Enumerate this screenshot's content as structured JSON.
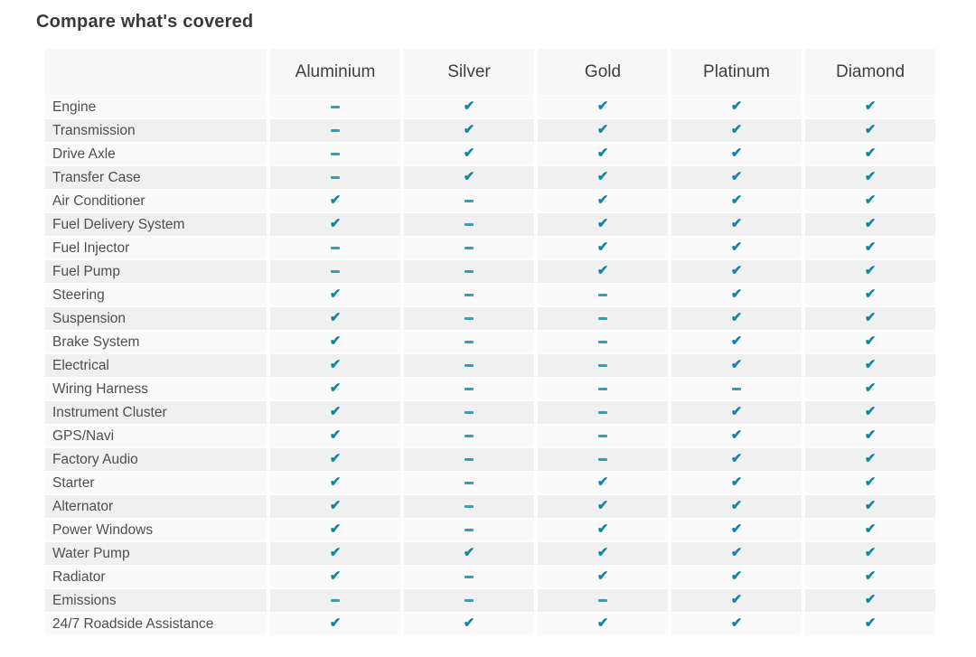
{
  "title": "Compare what's covered",
  "colors": {
    "check": "#1283a6",
    "dash": "#2aa0c6",
    "row_odd": "#fafafa",
    "row_even": "#f0f0f0",
    "header_bg": "#f7f7f7"
  },
  "table": {
    "plans": [
      "Aluminium",
      "Silver",
      "Gold",
      "Platinum",
      "Diamond"
    ],
    "rows": [
      {
        "label": "Engine",
        "coverage": [
          "dash",
          "check",
          "check",
          "check",
          "check"
        ]
      },
      {
        "label": "Transmission",
        "coverage": [
          "dash",
          "check",
          "check",
          "check",
          "check"
        ]
      },
      {
        "label": "Drive Axle",
        "coverage": [
          "dash",
          "check",
          "check",
          "check",
          "check"
        ]
      },
      {
        "label": "Transfer Case",
        "coverage": [
          "dash",
          "check",
          "check",
          "check",
          "check"
        ]
      },
      {
        "label": "Air Conditioner",
        "coverage": [
          "check",
          "dash",
          "check",
          "check",
          "check"
        ]
      },
      {
        "label": "Fuel Delivery System",
        "coverage": [
          "check",
          "dash",
          "check",
          "check",
          "check"
        ]
      },
      {
        "label": "Fuel Injector",
        "coverage": [
          "dash",
          "dash",
          "check",
          "check",
          "check"
        ]
      },
      {
        "label": "Fuel Pump",
        "coverage": [
          "dash",
          "dash",
          "check",
          "check",
          "check"
        ]
      },
      {
        "label": "Steering",
        "coverage": [
          "check",
          "dash",
          "dash",
          "check",
          "check"
        ]
      },
      {
        "label": "Suspension",
        "coverage": [
          "check",
          "dash",
          "dash",
          "check",
          "check"
        ]
      },
      {
        "label": "Brake System",
        "coverage": [
          "check",
          "dash",
          "dash",
          "check",
          "check"
        ]
      },
      {
        "label": "Electrical",
        "coverage": [
          "check",
          "dash",
          "dash",
          "check",
          "check"
        ]
      },
      {
        "label": "Wiring Harness",
        "coverage": [
          "check",
          "dash",
          "dash",
          "dash",
          "check"
        ]
      },
      {
        "label": "Instrument Cluster",
        "coverage": [
          "check",
          "dash",
          "dash",
          "check",
          "check"
        ]
      },
      {
        "label": "GPS/Navi",
        "coverage": [
          "check",
          "dash",
          "dash",
          "check",
          "check"
        ]
      },
      {
        "label": "Factory Audio",
        "coverage": [
          "check",
          "dash",
          "dash",
          "check",
          "check"
        ]
      },
      {
        "label": "Starter",
        "coverage": [
          "check",
          "dash",
          "check",
          "check",
          "check"
        ]
      },
      {
        "label": "Alternator",
        "coverage": [
          "check",
          "dash",
          "check",
          "check",
          "check"
        ]
      },
      {
        "label": "Power Windows",
        "coverage": [
          "check",
          "dash",
          "check",
          "check",
          "check"
        ]
      },
      {
        "label": "Water Pump",
        "coverage": [
          "check",
          "check",
          "check",
          "check",
          "check"
        ]
      },
      {
        "label": "Radiator",
        "coverage": [
          "check",
          "dash",
          "check",
          "check",
          "check"
        ]
      },
      {
        "label": "Emissions",
        "coverage": [
          "dash",
          "dash",
          "dash",
          "check",
          "check"
        ]
      },
      {
        "label": "24/7 Roadside Assistance",
        "coverage": [
          "check",
          "check",
          "check",
          "check",
          "check"
        ]
      }
    ]
  }
}
